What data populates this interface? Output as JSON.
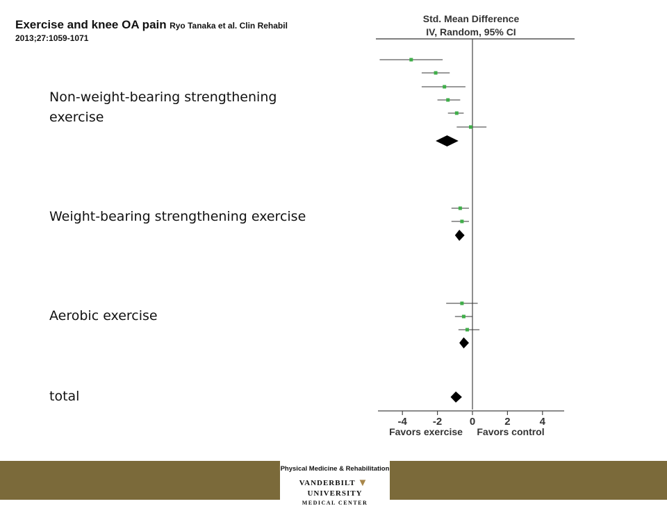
{
  "slide": {
    "title_main": "Exercise and knee OA pain",
    "title_cite": "Ryo Tanaka et al. Clin Rehabil 2013;27:1059-1071"
  },
  "groups": [
    {
      "label": "Non-weight-bearing strengthening exercise"
    },
    {
      "label": "Weight-bearing strengthening exercise"
    },
    {
      "label": "Aerobic exercise"
    },
    {
      "label": "total"
    }
  ],
  "colors": {
    "point": "#3fae49",
    "diamond": "#000000",
    "footer_band": "#7b6a3a",
    "logo_accent": "#a8874a"
  },
  "footer": {
    "logo_line1": "Physical Medicine & Rehabilitation",
    "logo_left": "VANDERBILT",
    "logo_right": "UNIVERSITY",
    "logo_line3": "MEDICAL CENTER",
    "logo_icon": "vanderbilt-v-logo-icon"
  },
  "chart_data": {
    "type": "forest",
    "header_line1": "Std. Mean Difference",
    "header_line2": "IV, Random, 95% CI",
    "xlim": [
      -5.3,
      5.3
    ],
    "xticks": [
      -4,
      -2,
      0,
      2,
      4
    ],
    "xtick_labels": [
      "-4",
      "-2",
      "0",
      "2",
      "4"
    ],
    "xlabel_left": "Favors exercise",
    "xlabel_right": "Favors control",
    "studies": [
      {
        "group": 0,
        "est": -3.5,
        "lo": -5.3,
        "hi": -1.7
      },
      {
        "group": 0,
        "est": -2.1,
        "lo": -2.9,
        "hi": -1.3
      },
      {
        "group": 0,
        "est": -1.6,
        "lo": -2.9,
        "hi": -0.4
      },
      {
        "group": 0,
        "est": -1.4,
        "lo": -2.0,
        "hi": -0.7
      },
      {
        "group": 0,
        "est": -0.9,
        "lo": -1.4,
        "hi": -0.5
      },
      {
        "group": 0,
        "est": -0.1,
        "lo": -0.9,
        "hi": 0.8
      },
      {
        "group": 1,
        "est": -0.7,
        "lo": -1.2,
        "hi": -0.2
      },
      {
        "group": 1,
        "est": -0.6,
        "lo": -1.2,
        "hi": -0.2
      },
      {
        "group": 2,
        "est": -0.6,
        "lo": -1.5,
        "hi": 0.3
      },
      {
        "group": 2,
        "est": -0.5,
        "lo": -1.0,
        "hi": 0.0
      },
      {
        "group": 2,
        "est": -0.3,
        "lo": -0.8,
        "hi": 0.4
      }
    ],
    "pooled": [
      {
        "group": 0,
        "est": -1.45,
        "lo": -2.1,
        "hi": -0.8
      },
      {
        "group": 1,
        "est": -0.75,
        "lo": -1.0,
        "hi": -0.45
      },
      {
        "group": 2,
        "est": -0.5,
        "lo": -0.75,
        "hi": -0.2
      },
      {
        "group": 3,
        "est": -0.95,
        "lo": -1.25,
        "hi": -0.6
      }
    ]
  }
}
